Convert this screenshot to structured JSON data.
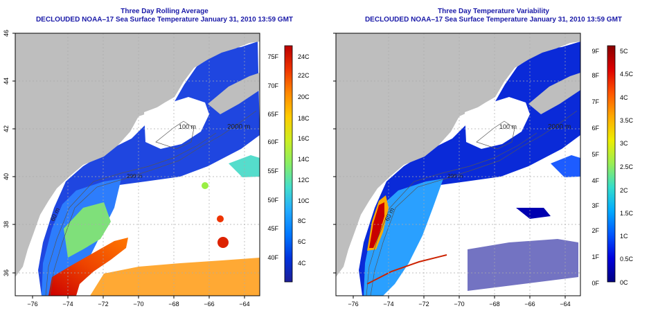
{
  "panels": [
    {
      "title": "Three Day Rolling Average",
      "subtitle": "DECLOUDED NOAA–17 Sea Surface Temperature January 31, 2010 13:59 GMT",
      "x_ticks": [
        "−76",
        "−74",
        "−72",
        "−70",
        "−68",
        "−66",
        "−64"
      ],
      "y_ticks": [
        "36",
        "38",
        "40",
        "42",
        "44",
        "46"
      ],
      "contour_labels": [
        "2000 m",
        "100 m",
        "200 m",
        "60 m"
      ],
      "colorbar": {
        "left_labels": [
          "75F",
          "70F",
          "65F",
          "60F",
          "55F",
          "50F",
          "45F",
          "40F"
        ],
        "right_labels": [
          "24C",
          "22C",
          "20C",
          "18C",
          "16C",
          "14C",
          "12C",
          "10C",
          "8C",
          "6C",
          "4C"
        ]
      }
    },
    {
      "title": "Three Day Temperature Variability",
      "subtitle": "DECLOUDED NOAA–17 Sea Surface Temperature January 31, 2010 13:59 GMT",
      "x_ticks": [
        "−76",
        "−74",
        "−72",
        "−70",
        "−68",
        "−66",
        "−64"
      ],
      "y_ticks": [
        "36",
        "38",
        "40",
        "42",
        "44",
        "46"
      ],
      "contour_labels": [
        "2000 m",
        "100 m",
        "200 m",
        "60 m"
      ],
      "colorbar": {
        "left_labels": [
          "9F",
          "8F",
          "7F",
          "6F",
          "5F",
          "4F",
          "3F",
          "2F",
          "1F",
          "0F"
        ],
        "right_labels": [
          "5C",
          "4.5C",
          "4C",
          "3.5C",
          "3C",
          "2.5C",
          "2C",
          "1.5C",
          "1C",
          "0.5C",
          "0C"
        ]
      }
    }
  ],
  "colors": {
    "land": "#bebebe",
    "title": "#1a1aa8",
    "sst_scale": [
      "#1e1e96",
      "#0033dd",
      "#0077ff",
      "#22aaff",
      "#44ddcc",
      "#88ee66",
      "#ccee22",
      "#ffcc00",
      "#ff8800",
      "#ee3300",
      "#bb0000"
    ],
    "variability_scale": [
      "#000080",
      "#0000dd",
      "#0055ff",
      "#00aaff",
      "#33ddcc",
      "#99ee55",
      "#eeee00",
      "#ffaa00",
      "#ff5500",
      "#dd0000",
      "#880000"
    ]
  }
}
